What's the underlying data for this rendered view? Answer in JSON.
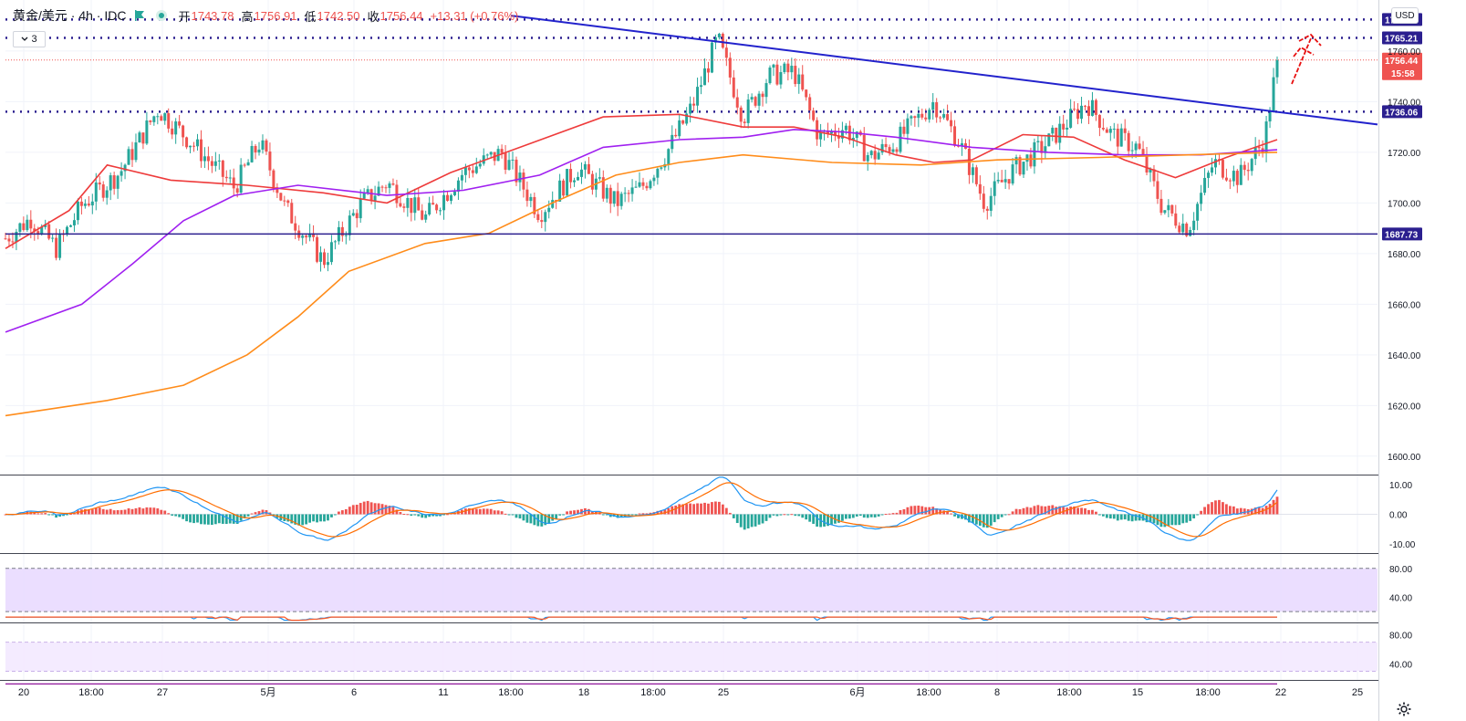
{
  "header": {
    "symbol": "黄金/美元 · 4h · IDC",
    "open_label": "开",
    "open": "1743.78",
    "high_label": "高",
    "high": "1756.91",
    "low_label": "低",
    "low": "1742.50",
    "close_label": "收",
    "close": "1756.44",
    "change": "+13.31 (+0.76%)",
    "indicators_count": "3",
    "currency": "USD"
  },
  "colors": {
    "up": "#26a69a",
    "down": "#ef5350",
    "line_red": "#ee3b3b",
    "line_purple": "#a020f0",
    "line_orange": "#ff8c1a",
    "trendline": "#2222cc",
    "level": "#2b1f8f",
    "arrow": "#e81010"
  },
  "chart_data": [
    {
      "type": "candlestick",
      "instrument": "黄金/美元 4h",
      "y_ticks": [
        "1760.00",
        "1740.00",
        "1720.00",
        "1700.00",
        "1680.00",
        "1660.00",
        "1640.00",
        "1620.00",
        "1600.00"
      ],
      "x_ticks": [
        "20",
        "18:00",
        "27",
        "5月",
        "6",
        "11",
        "18:00",
        "18",
        "18:00",
        "25",
        "6月",
        "18:00",
        "8",
        "18:00",
        "15",
        "18:00",
        "22",
        "25"
      ],
      "ylim": [
        1592,
        1778
      ],
      "price_levels": [
        {
          "label": "1772.44",
          "value": 1772.44,
          "style": "dotted"
        },
        {
          "label": "1765.21",
          "value": 1765.21,
          "style": "dotted"
        },
        {
          "label": "1736.06",
          "value": 1736.06,
          "style": "dotted"
        },
        {
          "label": "1687.73",
          "value": 1687.73,
          "style": "solid"
        }
      ],
      "last_price": {
        "label": "1756.44",
        "value": 1756.44,
        "countdown": "15:58"
      },
      "trendline": {
        "from": {
          "bar": 0.31,
          "price": 1774
        },
        "to": {
          "bar": 1.0,
          "price": 1731
        }
      },
      "ohlc_path": [
        [
          0,
          1686
        ],
        [
          0.02,
          1694
        ],
        [
          0.04,
          1682
        ],
        [
          0.06,
          1699
        ],
        [
          0.09,
          1712
        ],
        [
          0.12,
          1737
        ],
        [
          0.15,
          1722
        ],
        [
          0.18,
          1706
        ],
        [
          0.2,
          1724
        ],
        [
          0.22,
          1698
        ],
        [
          0.25,
          1677
        ],
        [
          0.28,
          1700
        ],
        [
          0.3,
          1708
        ],
        [
          0.33,
          1694
        ],
        [
          0.36,
          1712
        ],
        [
          0.39,
          1720
        ],
        [
          0.42,
          1696
        ],
        [
          0.45,
          1714
        ],
        [
          0.48,
          1700
        ],
        [
          0.5,
          1706
        ],
        [
          0.52,
          1720
        ],
        [
          0.54,
          1738
        ],
        [
          0.56,
          1765
        ],
        [
          0.58,
          1734
        ],
        [
          0.6,
          1750
        ],
        [
          0.62,
          1752
        ],
        [
          0.64,
          1726
        ],
        [
          0.66,
          1730
        ],
        [
          0.68,
          1718
        ],
        [
          0.7,
          1724
        ],
        [
          0.73,
          1740
        ],
        [
          0.75,
          1724
        ],
        [
          0.77,
          1700
        ],
        [
          0.79,
          1712
        ],
        [
          0.82,
          1724
        ],
        [
          0.85,
          1740
        ],
        [
          0.87,
          1727
        ],
        [
          0.89,
          1722
        ],
        [
          0.91,
          1698
        ],
        [
          0.93,
          1690
        ],
        [
          0.95,
          1716
        ],
        [
          0.97,
          1710
        ],
        [
          0.99,
          1725
        ],
        [
          1.0,
          1756
        ]
      ],
      "moving_averages": [
        {
          "color": "#ee3b3b",
          "points": [
            [
              0,
              1682
            ],
            [
              0.05,
              1697
            ],
            [
              0.08,
              1715
            ],
            [
              0.13,
              1709
            ],
            [
              0.19,
              1707
            ],
            [
              0.25,
              1704
            ],
            [
              0.3,
              1700
            ],
            [
              0.35,
              1712
            ],
            [
              0.41,
              1723
            ],
            [
              0.47,
              1734
            ],
            [
              0.53,
              1735
            ],
            [
              0.58,
              1730
            ],
            [
              0.62,
              1730
            ],
            [
              0.66,
              1726
            ],
            [
              0.7,
              1719
            ],
            [
              0.73,
              1716
            ],
            [
              0.76,
              1717
            ],
            [
              0.8,
              1727
            ],
            [
              0.84,
              1726
            ],
            [
              0.88,
              1717
            ],
            [
              0.92,
              1710
            ],
            [
              0.96,
              1718
            ],
            [
              1.0,
              1725
            ]
          ]
        },
        {
          "color": "#a020f0",
          "points": [
            [
              0,
              1649
            ],
            [
              0.06,
              1660
            ],
            [
              0.1,
              1676
            ],
            [
              0.14,
              1693
            ],
            [
              0.18,
              1703
            ],
            [
              0.23,
              1707
            ],
            [
              0.3,
              1703
            ],
            [
              0.36,
              1705
            ],
            [
              0.42,
              1711
            ],
            [
              0.47,
              1722
            ],
            [
              0.53,
              1725
            ],
            [
              0.58,
              1726
            ],
            [
              0.62,
              1729
            ],
            [
              0.66,
              1728
            ],
            [
              0.7,
              1726
            ],
            [
              0.76,
              1722
            ],
            [
              0.82,
              1720
            ],
            [
              0.88,
              1719
            ],
            [
              0.94,
              1719
            ],
            [
              1.0,
              1721
            ]
          ]
        },
        {
          "color": "#ff8c1a",
          "points": [
            [
              0,
              1616
            ],
            [
              0.08,
              1622
            ],
            [
              0.14,
              1628
            ],
            [
              0.19,
              1640
            ],
            [
              0.23,
              1655
            ],
            [
              0.27,
              1673
            ],
            [
              0.33,
              1684
            ],
            [
              0.38,
              1688
            ],
            [
              0.43,
              1700
            ],
            [
              0.48,
              1711
            ],
            [
              0.53,
              1716
            ],
            [
              0.58,
              1719
            ],
            [
              0.65,
              1716
            ],
            [
              0.72,
              1715
            ],
            [
              0.78,
              1717
            ],
            [
              0.86,
              1718
            ],
            [
              0.93,
              1719
            ],
            [
              1.0,
              1720
            ]
          ]
        }
      ],
      "annotation": "red dashed upward arrow toward 1772.44"
    },
    {
      "type": "macd",
      "y_ticks": [
        "10.00",
        "0.00",
        "-10.00"
      ],
      "ylim": [
        -13,
        13
      ]
    },
    {
      "type": "stochastic",
      "y_ticks": [
        "80.00",
        "40.00"
      ],
      "ylim": [
        5,
        100
      ],
      "band": [
        20,
        80
      ]
    },
    {
      "type": "rsi",
      "y_ticks": [
        "80.00",
        "40.00"
      ],
      "ylim": [
        18,
        96
      ],
      "band": [
        30,
        70
      ]
    }
  ]
}
